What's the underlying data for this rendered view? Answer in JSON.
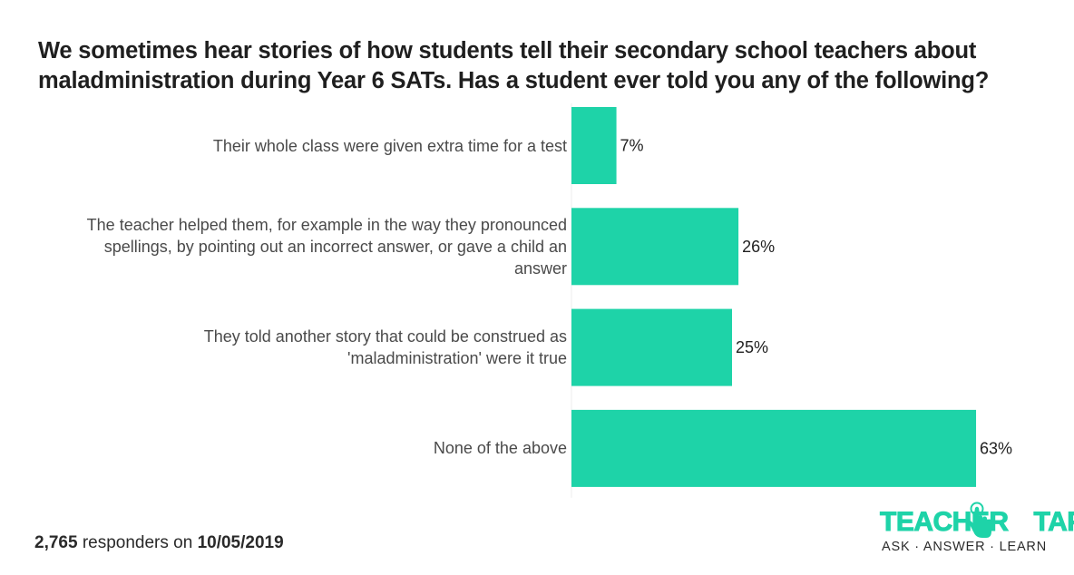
{
  "title_lines": [
    "We sometimes hear stories of how students tell their secondary school teachers about",
    "maladministration during Year 6 SATs. Has a student ever told you any of the following?"
  ],
  "chart_data": {
    "type": "bar",
    "orientation": "horizontal",
    "categories": [
      "Their whole class were given extra time for a test",
      "The teacher helped them, for example in the way they pronounced spellings, by pointing out an incorrect answer, or gave a child an answer",
      "They told another story that could be construed as 'maladministration' were it true",
      "None of the above"
    ],
    "category_lines": [
      [
        "Their whole class were given extra time for a test"
      ],
      [
        "The teacher helped them, for example in the way they pronounced",
        "spellings, by pointing out an incorrect answer, or gave a child an",
        "answer"
      ],
      [
        "They told another story that could be construed as",
        "'maladministration' were it true"
      ],
      [
        "None of the above"
      ]
    ],
    "values": [
      7,
      26,
      25,
      63
    ],
    "data_labels": [
      "7%",
      "26%",
      "25%",
      "63%"
    ],
    "unit": "%",
    "xlim": [
      0,
      100
    ],
    "grid": false,
    "bar_color": "#1ed3a8"
  },
  "footer": {
    "count": "2,765",
    "middle": " responders on ",
    "date": "10/05/2019"
  },
  "logo": {
    "word_left": "TEACHER",
    "word_right": "TAPP",
    "tagline": "ASK · ANSWER · LEARN",
    "icon": "tapping-hand-icon",
    "color": "#1ed3a8"
  }
}
